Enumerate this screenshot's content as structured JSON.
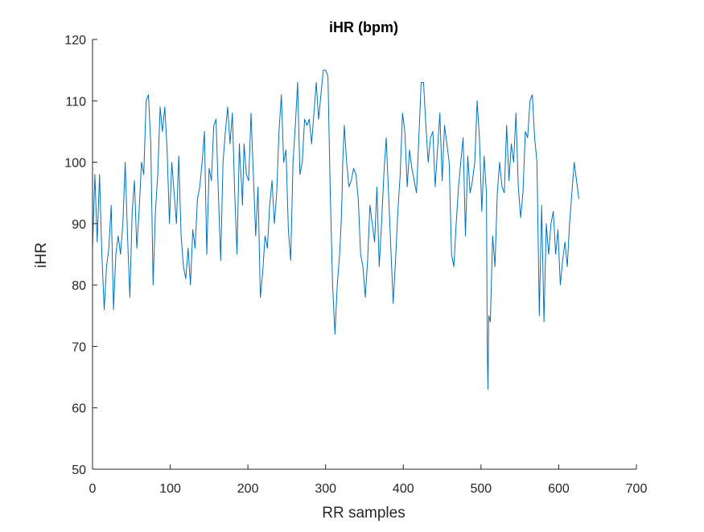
{
  "chart_data": {
    "type": "line",
    "title": "iHR (bpm)",
    "xlabel": "RR samples",
    "ylabel": "iHR",
    "xlim": [
      0,
      700
    ],
    "ylim": [
      50,
      120
    ],
    "xticks": [
      "0",
      "100",
      "200",
      "300",
      "400",
      "500",
      "600",
      "700"
    ],
    "yticks": [
      "50",
      "60",
      "70",
      "80",
      "90",
      "100",
      "110",
      "120"
    ],
    "grid": false,
    "legend": "none",
    "series": [
      {
        "color": "#0072BD",
        "x": [
          0,
          3,
          6,
          9,
          12,
          15,
          18,
          21,
          24,
          27,
          30,
          33,
          36,
          39,
          42,
          45,
          48,
          51,
          54,
          57,
          60,
          63,
          66,
          69,
          72,
          75,
          78,
          81,
          84,
          87,
          90,
          93,
          96,
          99,
          102,
          105,
          108,
          111,
          114,
          117,
          120,
          123,
          126,
          129,
          132,
          135,
          138,
          141,
          144,
          147,
          150,
          153,
          156,
          159,
          162,
          165,
          168,
          171,
          174,
          177,
          180,
          183,
          186,
          189,
          190,
          191,
          192,
          193,
          195,
          198,
          201,
          204,
          207,
          210,
          213,
          216,
          219,
          222,
          225,
          228,
          231,
          234,
          237,
          240,
          243,
          246,
          249,
          252,
          255,
          258,
          261,
          264,
          267,
          270,
          273,
          276,
          279,
          282,
          285,
          288,
          291,
          294,
          297,
          300,
          303,
          306,
          309,
          312,
          315,
          318,
          320,
          321,
          322,
          324,
          327,
          330,
          333,
          336,
          339,
          342,
          345,
          348,
          351,
          354,
          357,
          360,
          363,
          366,
          369,
          372,
          375,
          378,
          381,
          384,
          387,
          390,
          393,
          396,
          399,
          402,
          405,
          408,
          411,
          414,
          417,
          420,
          423,
          426,
          429,
          432,
          435,
          438,
          441,
          444,
          447,
          450,
          453,
          456,
          459,
          462,
          465,
          468,
          471,
          474,
          477,
          480,
          483,
          486,
          489,
          492,
          495,
          498,
          501,
          504,
          507,
          508,
          509,
          510,
          512,
          515,
          518,
          521,
          524,
          527,
          530,
          533,
          536,
          539,
          542,
          545,
          548,
          551,
          554,
          557,
          560,
          563,
          566,
          569,
          572,
          575,
          578,
          581,
          584,
          587,
          590,
          593,
          596,
          599,
          602,
          605,
          608,
          611,
          614,
          617,
          620,
          623,
          626
        ],
        "y": [
          86,
          98,
          87,
          98,
          85,
          76,
          83,
          86,
          93,
          76,
          85,
          88,
          85,
          90,
          100,
          88,
          78,
          92,
          97,
          86,
          92,
          100,
          98,
          110,
          111,
          103,
          80,
          92,
          98,
          109,
          105,
          109,
          102,
          90,
          100,
          95,
          90,
          101,
          88,
          83,
          81,
          86,
          80,
          89,
          86,
          94,
          96,
          100,
          105,
          85,
          99,
          97,
          106,
          107,
          95,
          84,
          100,
          105,
          109,
          103,
          108,
          95,
          85,
          103,
          100,
          98,
          96,
          93,
          103,
          98,
          97,
          108,
          98,
          88,
          96,
          78,
          82,
          88,
          86,
          93,
          97,
          90,
          95,
          105,
          111,
          100,
          102,
          89,
          84,
          100,
          106,
          113,
          98,
          100,
          107,
          106,
          107,
          103,
          108,
          113,
          107,
          111,
          115,
          115,
          114,
          95,
          80,
          72,
          80,
          85,
          90,
          94,
          100,
          106,
          100,
          96,
          97,
          99,
          98,
          94,
          85,
          83,
          78,
          84,
          93,
          90,
          87,
          96,
          83,
          90,
          98,
          104,
          95,
          86,
          77,
          84,
          92,
          98,
          108,
          105,
          96,
          102,
          99,
          97,
          95,
          104,
          113,
          113,
          106,
          100,
          104,
          105,
          96,
          102,
          108,
          97,
          106,
          103,
          100,
          85,
          83,
          90,
          96,
          100,
          104,
          88,
          101,
          95,
          97,
          100,
          110,
          104,
          92,
          101,
          95,
          70,
          63,
          75,
          74,
          88,
          83,
          95,
          100,
          96,
          95,
          106,
          97,
          103,
          100,
          108,
          96,
          91,
          95,
          105,
          104,
          110,
          111,
          104,
          100,
          75,
          93,
          74,
          90,
          85,
          90,
          92,
          85,
          89,
          80,
          84,
          87,
          83,
          90,
          95,
          100,
          97,
          94
        ]
      }
    ]
  }
}
